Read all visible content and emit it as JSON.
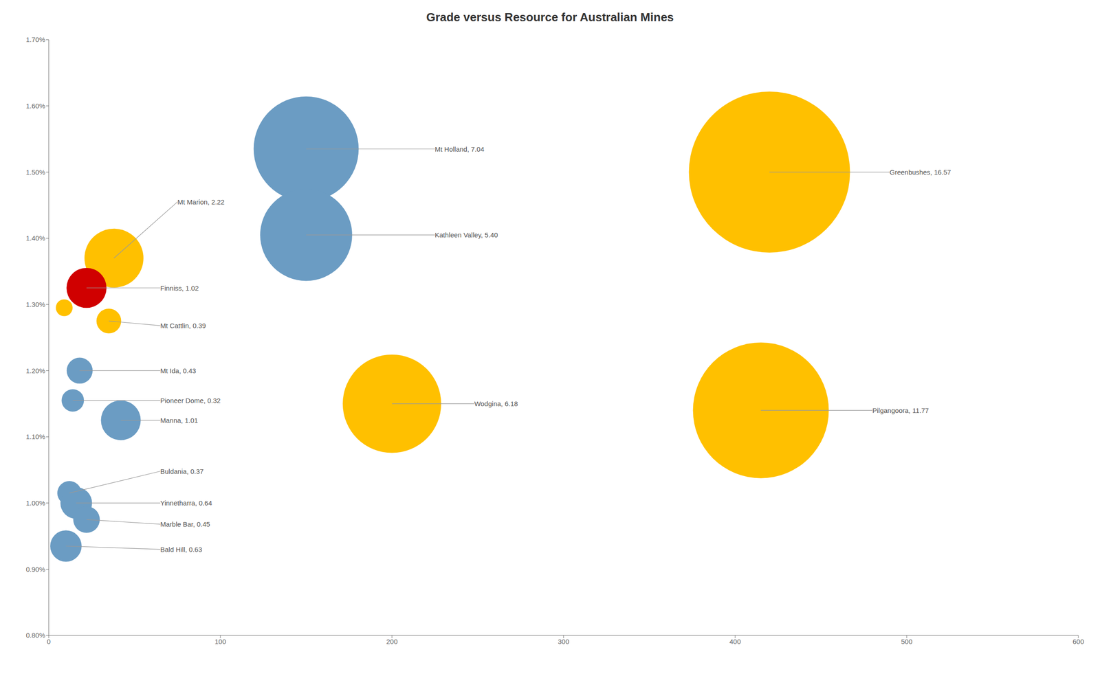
{
  "chart_data": {
    "type": "scatter",
    "title": "Grade versus Resource for Australian Mines",
    "x": [
      420,
      415,
      200,
      150,
      150,
      38,
      22,
      35,
      18,
      14,
      42,
      12,
      16,
      22,
      10,
      9
    ],
    "values": [
      0.015,
      0.0114,
      0.0115,
      0.01535,
      0.01405,
      0.0137,
      0.01325,
      0.01275,
      0.012,
      0.01155,
      0.01125,
      0.01015,
      0.01,
      0.00975,
      0.00935,
      0.01295
    ],
    "sizes": [
      16.57,
      11.77,
      6.18,
      7.04,
      5.4,
      2.22,
      1.02,
      0.39,
      0.43,
      0.32,
      1.01,
      0.37,
      0.64,
      0.45,
      0.63,
      0.18
    ],
    "colors": [
      "#FFC000",
      "#FFC000",
      "#FFC000",
      "#6B9CC3",
      "#6B9CC3",
      "#FFC000",
      "#D00000",
      "#FFC000",
      "#6B9CC3",
      "#6B9CC3",
      "#6B9CC3",
      "#6B9CC3",
      "#6B9CC3",
      "#6B9CC3",
      "#6B9CC3",
      "#FFC000"
    ],
    "annotations": [
      {
        "text": "Greenbushes, 16.57",
        "x": 420,
        "y": 0.015,
        "text_x": 490,
        "text_y": 0.015
      },
      {
        "text": "Pilgangoora, 11.77",
        "x": 415,
        "y": 0.0114,
        "text_x": 480,
        "text_y": 0.0114
      },
      {
        "text": "Wodgina, 6.18",
        "x": 200,
        "y": 0.0115,
        "text_x": 248,
        "text_y": 0.0115
      },
      {
        "text": "Mt Holland, 7.04",
        "x": 150,
        "y": 0.01535,
        "text_x": 225,
        "text_y": 0.01535
      },
      {
        "text": "Kathleen Valley, 5.40",
        "x": 150,
        "y": 0.01405,
        "text_x": 225,
        "text_y": 0.01405
      },
      {
        "text": "Mt Marion, 2.22",
        "x": 38,
        "y": 0.0137,
        "text_x": 75,
        "text_y": 0.01455
      },
      {
        "text": "Finniss, 1.02",
        "x": 22,
        "y": 0.01325,
        "text_x": 65,
        "text_y": 0.01325
      },
      {
        "text": "Mt Cattlin, 0.39",
        "x": 35,
        "y": 0.01275,
        "text_x": 65,
        "text_y": 0.01268
      },
      {
        "text": "Mt Ida, 0.43",
        "x": 18,
        "y": 0.012,
        "text_x": 65,
        "text_y": 0.012
      },
      {
        "text": "Pioneer Dome, 0.32",
        "x": 14,
        "y": 0.01155,
        "text_x": 65,
        "text_y": 0.01155
      },
      {
        "text": "Manna, 1.01",
        "x": 42,
        "y": 0.01125,
        "text_x": 65,
        "text_y": 0.01125
      },
      {
        "text": "Buldania, 0.37",
        "x": 12,
        "y": 0.01015,
        "text_x": 65,
        "text_y": 0.01048
      },
      {
        "text": "Yinnetharra, 0.64",
        "x": 16,
        "y": 0.01,
        "text_x": 65,
        "text_y": 0.01
      },
      {
        "text": "Marble Bar, 0.45",
        "x": 22,
        "y": 0.00975,
        "text_x": 65,
        "text_y": 0.00968
      },
      {
        "text": "Bald Hill, 0.63",
        "x": 10,
        "y": 0.00935,
        "text_x": 65,
        "text_y": 0.0093
      }
    ],
    "xlim": [
      0,
      600
    ],
    "ylim": [
      0.008,
      0.017
    ],
    "xticks": [
      0,
      100,
      200,
      300,
      400,
      500,
      600
    ],
    "yticks": [
      {
        "value": 0.008,
        "label": "0.80%"
      },
      {
        "value": 0.009,
        "label": "0.90%"
      },
      {
        "value": 0.01,
        "label": "1.00%"
      },
      {
        "value": 0.011,
        "label": "1.10%"
      },
      {
        "value": 0.012,
        "label": "1.20%"
      },
      {
        "value": 0.013,
        "label": "1.30%"
      },
      {
        "value": 0.014,
        "label": "1.40%"
      },
      {
        "value": 0.015,
        "label": "1.50%"
      },
      {
        "value": 0.016,
        "label": "1.60%"
      },
      {
        "value": 0.017,
        "label": "1.70%"
      }
    ],
    "grid": false
  }
}
